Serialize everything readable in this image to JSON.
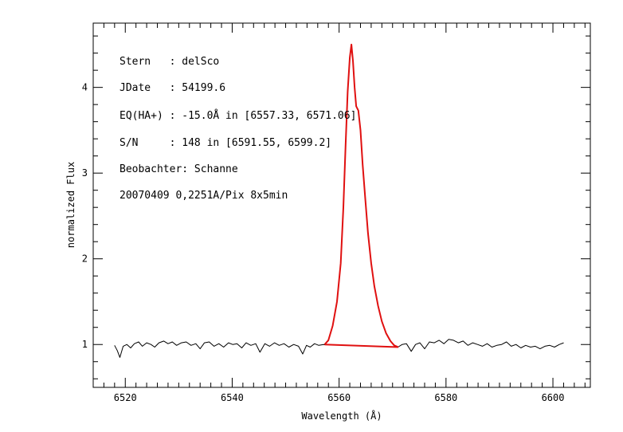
{
  "chart_data": {
    "type": "line",
    "xlabel": "Wavelength (Å)",
    "ylabel": "normalized Flux",
    "xlim": [
      6514,
      6607
    ],
    "ylim": [
      0.5,
      4.75
    ],
    "x_ticks": [
      6520,
      6540,
      6560,
      6580,
      6600
    ],
    "y_ticks": [
      1,
      2,
      3,
      4
    ],
    "x_tick_labels": [
      "6520",
      "6540",
      "6560",
      "6580",
      "6600"
    ],
    "y_tick_labels": [
      "1",
      "2",
      "3",
      "4"
    ],
    "grid": false,
    "annotations": [
      "Stern   : delSco",
      "JDate   : 54199.6",
      "EQ(HA+) : -15.0Å in [6557.33, 6571.06]",
      "S/N     : 148 in [6591.55, 6599.2]",
      "Beobachter: Schanne",
      "20070409 0,2251A/Pix 8x5min"
    ],
    "series": [
      {
        "color": "#000000",
        "x": [
          6518,
          6518.5,
          6519,
          6519.6,
          6520.3,
          6521,
          6521.7,
          6522.5,
          6523.2,
          6524,
          6524.8,
          6525.5,
          6526.3,
          6527.2,
          6528,
          6528.8,
          6529.6,
          6530.5,
          6531.4,
          6532.3,
          6533.2,
          6534,
          6534.8,
          6535.7,
          6536.6,
          6537.5,
          6538.4,
          6539.3,
          6540.1,
          6540.9,
          6541.8,
          6542.6,
          6543.5,
          6544.4,
          6545.2,
          6546.1,
          6547,
          6547.9,
          6548.8,
          6549.7,
          6550.6,
          6551.5,
          6552.4,
          6553.2,
          6553.9,
          6554.6,
          6555.4,
          6556.2,
          6557.1,
          6571,
          6571.8,
          6572.6,
          6573.5,
          6574.3,
          6575.1,
          6576,
          6576.9,
          6577.8,
          6578.7,
          6579.6,
          6580.5,
          6581.4,
          6582.3,
          6583.2,
          6584.1,
          6585,
          6585.9,
          6586.8,
          6587.7,
          6588.6,
          6589.5,
          6590.4,
          6591.3,
          6592.2,
          6593.1,
          6594,
          6594.9,
          6595.8,
          6596.7,
          6597.6,
          6598.5,
          6599.4,
          6600.3,
          6601.2,
          6602
        ],
        "y": [
          0.99,
          0.93,
          0.85,
          0.98,
          1.0,
          0.96,
          1.01,
          1.03,
          0.98,
          1.02,
          1.0,
          0.97,
          1.02,
          1.04,
          1.01,
          1.03,
          0.99,
          1.02,
          1.03,
          0.99,
          1.01,
          0.95,
          1.02,
          1.03,
          0.98,
          1.01,
          0.97,
          1.02,
          1.0,
          1.01,
          0.96,
          1.02,
          0.99,
          1.01,
          0.91,
          1.01,
          0.98,
          1.02,
          0.99,
          1.01,
          0.97,
          1.0,
          0.98,
          0.89,
          0.99,
          0.97,
          1.01,
          0.99,
          1.0,
          0.97,
          1.0,
          1.01,
          0.92,
          1.0,
          1.02,
          0.95,
          1.03,
          1.02,
          1.05,
          1.01,
          1.06,
          1.05,
          1.02,
          1.04,
          0.99,
          1.02,
          1.0,
          0.98,
          1.01,
          0.97,
          0.99,
          1.0,
          1.03,
          0.98,
          1.0,
          0.96,
          0.99,
          0.97,
          0.98,
          0.95,
          0.98,
          0.99,
          0.97,
          1.0,
          1.02
        ]
      },
      {
        "color": "#e01010",
        "x": [
          6557.3,
          6558,
          6558.8,
          6559.6,
          6560.3,
          6560.8,
          6561.2,
          6561.6,
          6562,
          6562.3,
          6562.6,
          6562.9,
          6563.2,
          6563.6,
          6564.0,
          6564.4,
          6564.9,
          6565.4,
          6566,
          6566.6,
          6567.3,
          6568,
          6568.8,
          6569.6,
          6570.3,
          6571.06
        ],
        "y": [
          1.0,
          1.05,
          1.22,
          1.5,
          1.95,
          2.6,
          3.3,
          3.95,
          4.35,
          4.5,
          4.3,
          4.0,
          3.78,
          3.73,
          3.5,
          3.1,
          2.7,
          2.3,
          1.95,
          1.68,
          1.45,
          1.27,
          1.13,
          1.04,
          0.99,
          0.97
        ]
      },
      {
        "color": "#e01010",
        "x": [
          6557.3,
          6571.06
        ],
        "y": [
          1.0,
          0.97
        ]
      }
    ]
  }
}
